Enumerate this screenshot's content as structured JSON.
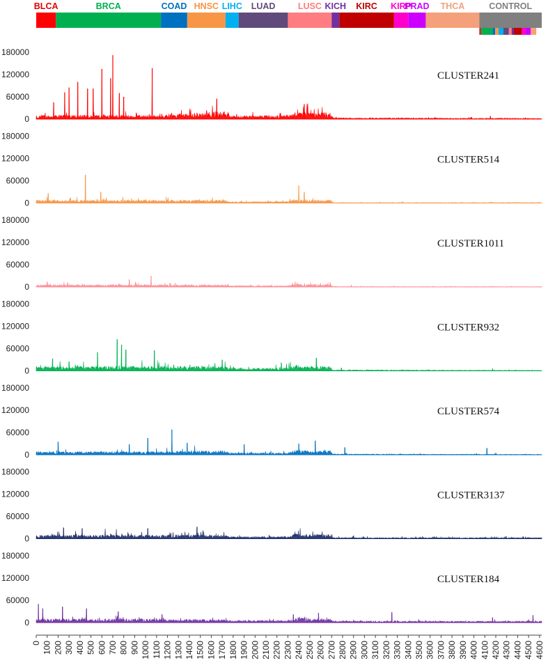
{
  "chart_data": {
    "type": "area",
    "title": "",
    "xlabel": "",
    "ylabel": "",
    "xlim": [
      0,
      4620
    ],
    "ylim": [
      0,
      180000
    ],
    "y_ticks": [
      "0",
      "60000",
      "120000",
      "180000"
    ],
    "x_ticks": [
      "0",
      "100",
      "200",
      "300",
      "400",
      "500",
      "600",
      "700",
      "800",
      "900",
      "1000",
      "1100",
      "1200",
      "1300",
      "1400",
      "1500",
      "1600",
      "1700",
      "1800",
      "1900",
      "2000",
      "2100",
      "2200",
      "2300",
      "2400",
      "2500",
      "2600",
      "2700",
      "2800",
      "2900",
      "3000",
      "3100",
      "3200",
      "3300",
      "3400",
      "3500",
      "3600",
      "3700",
      "3800",
      "3900",
      "4000",
      "4100",
      "4200",
      "4300",
      "4400",
      "4500",
      "4600"
    ],
    "groups": [
      {
        "name": "BLCA",
        "start": 0,
        "end": 180,
        "color": "#ff0000",
        "label_color": "#e00000"
      },
      {
        "name": "BRCA",
        "start": 180,
        "end": 1140,
        "color": "#00b050",
        "label_color": "#00b050"
      },
      {
        "name": "COAD",
        "start": 1140,
        "end": 1380,
        "color": "#0070c0",
        "label_color": "#0070c0"
      },
      {
        "name": "HNSC",
        "start": 1380,
        "end": 1730,
        "color": "#f79646",
        "label_color": "#f79646"
      },
      {
        "name": "LIHC",
        "start": 1730,
        "end": 1850,
        "color": "#00b0f0",
        "label_color": "#00b0f0"
      },
      {
        "name": "LUAD",
        "start": 1850,
        "end": 2300,
        "color": "#604a7b",
        "label_color": "#604a7b"
      },
      {
        "name": "LUSC",
        "start": 2300,
        "end": 2700,
        "color": "#ff7c80",
        "label_color": "#ff7c80"
      },
      {
        "name": "KICH",
        "start": 2700,
        "end": 2770,
        "color": "#7030a0",
        "label_color": "#7030a0"
      },
      {
        "name": "KIRC",
        "start": 2770,
        "end": 3270,
        "color": "#c00000",
        "label_color": "#c00000"
      },
      {
        "name": "KIRP",
        "start": 3270,
        "end": 3400,
        "color": "#ff00cc",
        "label_color": "#ff00cc"
      },
      {
        "name": "PRAD",
        "start": 3400,
        "end": 3560,
        "color": "#cc00ff",
        "label_color": "#cc00ff"
      },
      {
        "name": "THCA",
        "start": 3560,
        "end": 4050,
        "color": "#f4a07a",
        "label_color": "#f4a07a"
      },
      {
        "name": "CONTROL",
        "start": 4050,
        "end": 4620,
        "color": "#808080",
        "label_color": "#808080"
      }
    ],
    "control_subgroups": [
      {
        "start": 4050,
        "end": 4065,
        "color": "#ff0000"
      },
      {
        "start": 4065,
        "end": 4170,
        "color": "#00b050"
      },
      {
        "start": 4170,
        "end": 4195,
        "color": "#0070c0"
      },
      {
        "start": 4195,
        "end": 4225,
        "color": "#f79646"
      },
      {
        "start": 4225,
        "end": 4270,
        "color": "#00b0f0"
      },
      {
        "start": 4270,
        "end": 4320,
        "color": "#604a7b"
      },
      {
        "start": 4320,
        "end": 4345,
        "color": "#ff7c80"
      },
      {
        "start": 4345,
        "end": 4365,
        "color": "#7030a0"
      },
      {
        "start": 4365,
        "end": 4440,
        "color": "#c00000"
      },
      {
        "start": 4440,
        "end": 4470,
        "color": "#ff00cc"
      },
      {
        "start": 4470,
        "end": 4520,
        "color": "#cc00ff"
      },
      {
        "start": 4520,
        "end": 4570,
        "color": "#f4a07a"
      }
    ],
    "series": [
      {
        "name": "CLUSTER241",
        "color": "#ff0000",
        "seed": 241,
        "level_profile": [
          [
            0,
            6000
          ],
          [
            1140,
            6000
          ],
          [
            1300,
            8000
          ],
          [
            1730,
            12000
          ],
          [
            1760,
            5000
          ],
          [
            1850,
            5000
          ],
          [
            2300,
            6000
          ],
          [
            2400,
            12000
          ],
          [
            2690,
            10000
          ],
          [
            2710,
            2000
          ],
          [
            4620,
            1200
          ]
        ],
        "noise": 1.0,
        "peaks": [
          [
            160,
            45000
          ],
          [
            260,
            72000
          ],
          [
            300,
            85000
          ],
          [
            380,
            100000
          ],
          [
            470,
            82000
          ],
          [
            520,
            82000
          ],
          [
            600,
            135000
          ],
          [
            680,
            110000
          ],
          [
            700,
            172000
          ],
          [
            760,
            70000
          ],
          [
            800,
            60000
          ],
          [
            1060,
            137000
          ],
          [
            1650,
            55000
          ],
          [
            2450,
            40000
          ],
          [
            4150,
            8000
          ]
        ]
      },
      {
        "name": "CLUSTER514",
        "color": "#f79646",
        "seed": 514,
        "level_profile": [
          [
            0,
            4500
          ],
          [
            1730,
            4500
          ],
          [
            1760,
            2000
          ],
          [
            2300,
            2500
          ],
          [
            2360,
            5000
          ],
          [
            2690,
            4500
          ],
          [
            2710,
            700
          ],
          [
            4620,
            700
          ]
        ],
        "noise": 1.0,
        "peaks": [
          [
            110,
            26000
          ],
          [
            450,
            76000
          ],
          [
            590,
            30000
          ],
          [
            2400,
            47000
          ],
          [
            2450,
            30000
          ],
          [
            3350,
            3500
          ],
          [
            4160,
            3000
          ]
        ]
      },
      {
        "name": "CLUSTER1011",
        "color": "#ff8c94",
        "seed": 1011,
        "level_profile": [
          [
            0,
            3500
          ],
          [
            1730,
            3500
          ],
          [
            1760,
            2000
          ],
          [
            2300,
            2000
          ],
          [
            2360,
            4500
          ],
          [
            2690,
            4000
          ],
          [
            2710,
            700
          ],
          [
            4620,
            500
          ]
        ],
        "noise": 1.0,
        "peaks": [
          [
            100,
            14000
          ],
          [
            850,
            20000
          ],
          [
            1050,
            30000
          ],
          [
            2880,
            5000
          ],
          [
            4160,
            2000
          ]
        ]
      },
      {
        "name": "CLUSTER932",
        "color": "#00b050",
        "seed": 932,
        "level_profile": [
          [
            0,
            7000
          ],
          [
            1140,
            7000
          ],
          [
            1730,
            7000
          ],
          [
            1760,
            4000
          ],
          [
            2300,
            4500
          ],
          [
            2360,
            8000
          ],
          [
            2690,
            7000
          ],
          [
            2710,
            1500
          ],
          [
            4620,
            800
          ]
        ],
        "noise": 1.0,
        "peaks": [
          [
            150,
            33000
          ],
          [
            300,
            25000
          ],
          [
            560,
            50000
          ],
          [
            740,
            85000
          ],
          [
            780,
            70000
          ],
          [
            820,
            57000
          ],
          [
            1080,
            55000
          ],
          [
            1700,
            30000
          ],
          [
            2240,
            22000
          ],
          [
            2560,
            35000
          ],
          [
            2790,
            8000
          ],
          [
            4170,
            6000
          ]
        ]
      },
      {
        "name": "CLUSTER574",
        "color": "#0070c0",
        "seed": 574,
        "level_profile": [
          [
            0,
            5000
          ],
          [
            1140,
            5000
          ],
          [
            1380,
            6000
          ],
          [
            1730,
            6000
          ],
          [
            1760,
            3000
          ],
          [
            2300,
            3000
          ],
          [
            2360,
            7000
          ],
          [
            2690,
            6000
          ],
          [
            2710,
            1200
          ],
          [
            4620,
            700
          ]
        ],
        "noise": 1.0,
        "peaks": [
          [
            200,
            35000
          ],
          [
            850,
            28000
          ],
          [
            1020,
            45000
          ],
          [
            1240,
            68000
          ],
          [
            1380,
            32000
          ],
          [
            1900,
            28000
          ],
          [
            2400,
            30000
          ],
          [
            2550,
            38000
          ],
          [
            2820,
            20000
          ],
          [
            4120,
            18000
          ],
          [
            4200,
            5000
          ]
        ]
      },
      {
        "name": "CLUSTER3137",
        "color": "#1f2d6a",
        "seed": 3137,
        "level_profile": [
          [
            0,
            7000
          ],
          [
            1730,
            7000
          ],
          [
            1760,
            4000
          ],
          [
            2300,
            4000
          ],
          [
            2360,
            9000
          ],
          [
            2690,
            8000
          ],
          [
            2710,
            2000
          ],
          [
            4620,
            2000
          ]
        ],
        "noise": 0.8,
        "peaks": [
          [
            250,
            30000
          ],
          [
            420,
            28000
          ],
          [
            1020,
            28000
          ],
          [
            1470,
            32000
          ],
          [
            2900,
            8000
          ],
          [
            4450,
            6000
          ]
        ]
      },
      {
        "name": "CLUSTER184",
        "color": "#7030a0",
        "seed": 184,
        "level_profile": [
          [
            0,
            5000
          ],
          [
            1140,
            5000
          ],
          [
            1730,
            4000
          ],
          [
            1760,
            3000
          ],
          [
            2300,
            3000
          ],
          [
            2400,
            6000
          ],
          [
            2690,
            5000
          ],
          [
            2710,
            2000
          ],
          [
            4620,
            2000
          ]
        ],
        "noise": 1.2,
        "peaks": [
          [
            20,
            50000
          ],
          [
            60,
            38000
          ],
          [
            240,
            43000
          ],
          [
            460,
            38000
          ],
          [
            750,
            30000
          ],
          [
            1150,
            22000
          ],
          [
            2350,
            22000
          ],
          [
            2580,
            26000
          ],
          [
            3250,
            28000
          ],
          [
            4170,
            14000
          ],
          [
            4540,
            20000
          ]
        ]
      }
    ]
  }
}
